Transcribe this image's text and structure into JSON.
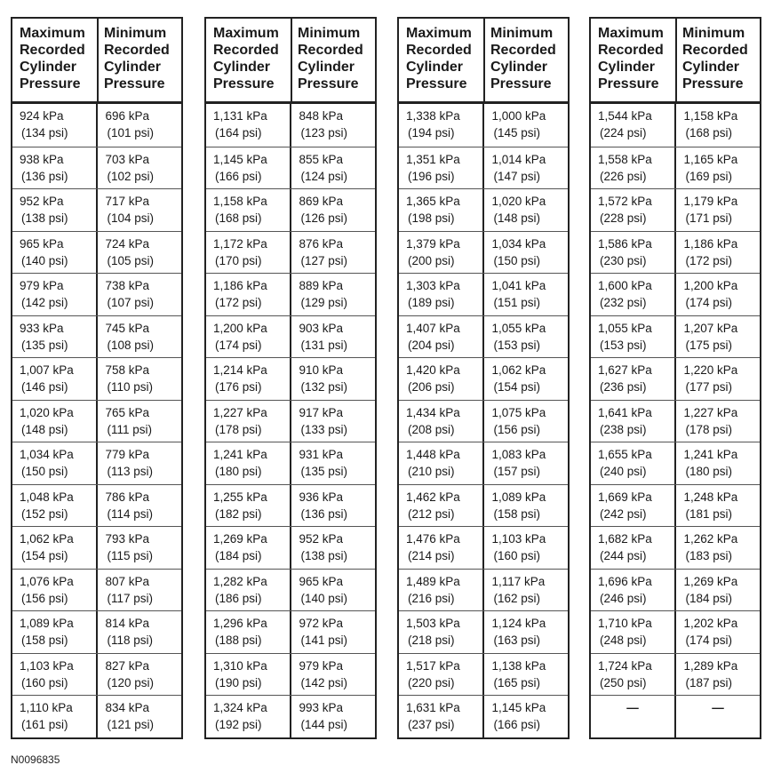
{
  "headers": {
    "max": "Maximum Recorded Cylinder Pressure",
    "min": "Minimum Recorded Cylinder Pressure"
  },
  "tables": [
    {
      "rows": [
        {
          "max_kpa": "924 kPa",
          "max_psi": "(134 psi)",
          "min_kpa": "696 kPa",
          "min_psi": "(101 psi)"
        },
        {
          "max_kpa": "938 kPa",
          "max_psi": "(136 psi)",
          "min_kpa": "703 kPa",
          "min_psi": "(102 psi)"
        },
        {
          "max_kpa": "952 kPa",
          "max_psi": "(138 psi)",
          "min_kpa": "717 kPa",
          "min_psi": "(104 psi)"
        },
        {
          "max_kpa": "965 kPa",
          "max_psi": "(140 psi)",
          "min_kpa": "724 kPa",
          "min_psi": "(105 psi)"
        },
        {
          "max_kpa": "979 kPa",
          "max_psi": "(142 psi)",
          "min_kpa": "738 kPa",
          "min_psi": "(107 psi)"
        },
        {
          "max_kpa": "933 kPa",
          "max_psi": "(135 psi)",
          "min_kpa": "745 kPa",
          "min_psi": "(108 psi)"
        },
        {
          "max_kpa": "1,007 kPa",
          "max_psi": "(146 psi)",
          "min_kpa": "758 kPa",
          "min_psi": "(110 psi)"
        },
        {
          "max_kpa": "1,020 kPa",
          "max_psi": "(148 psi)",
          "min_kpa": "765 kPa",
          "min_psi": "(111 psi)"
        },
        {
          "max_kpa": "1,034 kPa",
          "max_psi": "(150 psi)",
          "min_kpa": "779 kPa",
          "min_psi": "(113 psi)"
        },
        {
          "max_kpa": "1,048 kPa",
          "max_psi": "(152 psi)",
          "min_kpa": "786 kPa",
          "min_psi": "(114 psi)"
        },
        {
          "max_kpa": "1,062 kPa",
          "max_psi": "(154 psi)",
          "min_kpa": "793 kPa",
          "min_psi": "(115 psi)"
        },
        {
          "max_kpa": "1,076 kPa",
          "max_psi": "(156 psi)",
          "min_kpa": "807 kPa",
          "min_psi": "(117 psi)"
        },
        {
          "max_kpa": "1,089 kPa",
          "max_psi": "(158 psi)",
          "min_kpa": "814 kPa",
          "min_psi": "(118 psi)"
        },
        {
          "max_kpa": "1,103 kPa",
          "max_psi": "(160 psi)",
          "min_kpa": "827 kPa",
          "min_psi": "(120 psi)"
        },
        {
          "max_kpa": "1,110 kPa",
          "max_psi": "(161 psi)",
          "min_kpa": "834 kPa",
          "min_psi": "(121 psi)"
        }
      ]
    },
    {
      "rows": [
        {
          "max_kpa": "1,131 kPa",
          "max_psi": "(164 psi)",
          "min_kpa": "848 kPa",
          "min_psi": "(123 psi)"
        },
        {
          "max_kpa": "1,145 kPa",
          "max_psi": "(166 psi)",
          "min_kpa": "855 kPa",
          "min_psi": "(124 psi)"
        },
        {
          "max_kpa": "1,158 kPa",
          "max_psi": "(168 psi)",
          "min_kpa": "869 kPa",
          "min_psi": "(126 psi)"
        },
        {
          "max_kpa": "1,172 kPa",
          "max_psi": "(170 psi)",
          "min_kpa": "876 kPa",
          "min_psi": "(127 psi)"
        },
        {
          "max_kpa": "1,186 kPa",
          "max_psi": "(172 psi)",
          "min_kpa": "889 kPa",
          "min_psi": "(129 psi)"
        },
        {
          "max_kpa": "1,200 kPa",
          "max_psi": "(174 psi)",
          "min_kpa": "903 kPa",
          "min_psi": "(131 psi)"
        },
        {
          "max_kpa": "1,214 kPa",
          "max_psi": "(176 psi)",
          "min_kpa": "910 kPa",
          "min_psi": "(132 psi)"
        },
        {
          "max_kpa": "1,227 kPa",
          "max_psi": "(178 psi)",
          "min_kpa": "917 kPa",
          "min_psi": "(133 psi)"
        },
        {
          "max_kpa": "1,241 kPa",
          "max_psi": "(180 psi)",
          "min_kpa": "931 kPa",
          "min_psi": "(135 psi)"
        },
        {
          "max_kpa": "1,255 kPa",
          "max_psi": "(182 psi)",
          "min_kpa": "936 kPa",
          "min_psi": "(136 psi)"
        },
        {
          "max_kpa": "1,269 kPa",
          "max_psi": "(184 psi)",
          "min_kpa": "952 kPa",
          "min_psi": "(138 psi)"
        },
        {
          "max_kpa": "1,282 kPa",
          "max_psi": "(186 psi)",
          "min_kpa": "965 kPa",
          "min_psi": "(140 psi)"
        },
        {
          "max_kpa": "1,296 kPa",
          "max_psi": "(188 psi)",
          "min_kpa": "972 kPa",
          "min_psi": "(141 psi)"
        },
        {
          "max_kpa": "1,310 kPa",
          "max_psi": "(190 psi)",
          "min_kpa": "979 kPa",
          "min_psi": "(142 psi)"
        },
        {
          "max_kpa": "1,324 kPa",
          "max_psi": "(192 psi)",
          "min_kpa": "993 kPa",
          "min_psi": "(144 psi)"
        }
      ]
    },
    {
      "rows": [
        {
          "max_kpa": "1,338 kPa",
          "max_psi": "(194 psi)",
          "min_kpa": "1,000 kPa",
          "min_psi": "(145 psi)"
        },
        {
          "max_kpa": "1,351 kPa",
          "max_psi": "(196 psi)",
          "min_kpa": "1,014 kPa",
          "min_psi": "(147 psi)"
        },
        {
          "max_kpa": "1,365 kPa",
          "max_psi": "(198 psi)",
          "min_kpa": "1,020 kPa",
          "min_psi": "(148 psi)"
        },
        {
          "max_kpa": "1,379 kPa",
          "max_psi": "(200 psi)",
          "min_kpa": "1,034 kPa",
          "min_psi": "(150 psi)"
        },
        {
          "max_kpa": "1,303 kPa",
          "max_psi": "(189 psi)",
          "min_kpa": "1,041 kPa",
          "min_psi": "(151 psi)"
        },
        {
          "max_kpa": "1,407 kPa",
          "max_psi": "(204 psi)",
          "min_kpa": "1,055 kPa",
          "min_psi": "(153 psi)"
        },
        {
          "max_kpa": "1,420 kPa",
          "max_psi": "(206 psi)",
          "min_kpa": "1,062 kPa",
          "min_psi": "(154 psi)"
        },
        {
          "max_kpa": "1,434 kPa",
          "max_psi": "(208 psi)",
          "min_kpa": "1,075 kPa",
          "min_psi": "(156 psi)"
        },
        {
          "max_kpa": "1,448 kPa",
          "max_psi": "(210 psi)",
          "min_kpa": "1,083 kPa",
          "min_psi": "(157 psi)"
        },
        {
          "max_kpa": "1,462 kPa",
          "max_psi": "(212 psi)",
          "min_kpa": "1,089 kPa",
          "min_psi": "(158 psi)"
        },
        {
          "max_kpa": "1,476 kPa",
          "max_psi": "(214 psi)",
          "min_kpa": "1,103 kPa",
          "min_psi": "(160 psi)"
        },
        {
          "max_kpa": "1,489 kPa",
          "max_psi": "(216 psi)",
          "min_kpa": "1,117 kPa",
          "min_psi": "(162 psi)"
        },
        {
          "max_kpa": "1,503 kPa",
          "max_psi": "(218 psi)",
          "min_kpa": "1,124 kPa",
          "min_psi": "(163 psi)"
        },
        {
          "max_kpa": "1,517 kPa",
          "max_psi": "(220 psi)",
          "min_kpa": "1,138 kPa",
          "min_psi": "(165 psi)"
        },
        {
          "max_kpa": "1,631 kPa",
          "max_psi": "(237 psi)",
          "min_kpa": "1,145 kPa",
          "min_psi": "(166 psi)"
        }
      ]
    },
    {
      "rows": [
        {
          "max_kpa": "1,544 kPa",
          "max_psi": "(224 psi)",
          "min_kpa": "1,158 kPa",
          "min_psi": "(168 psi)"
        },
        {
          "max_kpa": "1,558 kPa",
          "max_psi": "(226 psi)",
          "min_kpa": "1,165 kPa",
          "min_psi": "(169 psi)"
        },
        {
          "max_kpa": "1,572 kPa",
          "max_psi": "(228 psi)",
          "min_kpa": "1,179 kPa",
          "min_psi": "(171 psi)"
        },
        {
          "max_kpa": "1,586 kPa",
          "max_psi": "(230 psi)",
          "min_kpa": "1,186 kPa",
          "min_psi": "(172 psi)"
        },
        {
          "max_kpa": "1,600 kPa",
          "max_psi": "(232 psi)",
          "min_kpa": "1,200 kPa",
          "min_psi": "(174 psi)"
        },
        {
          "max_kpa": "1,055 kPa",
          "max_psi": "(153 psi)",
          "min_kpa": "1,207 kPa",
          "min_psi": "(175 psi)"
        },
        {
          "max_kpa": "1,627 kPa",
          "max_psi": "(236 psi)",
          "min_kpa": "1,220 kPa",
          "min_psi": "(177 psi)"
        },
        {
          "max_kpa": "1,641 kPa",
          "max_psi": "(238 psi)",
          "min_kpa": "1,227 kPa",
          "min_psi": "(178 psi)"
        },
        {
          "max_kpa": "1,655 kPa",
          "max_psi": "(240 psi)",
          "min_kpa": "1,241 kPa",
          "min_psi": "(180 psi)"
        },
        {
          "max_kpa": "1,669 kPa",
          "max_psi": "(242 psi)",
          "min_kpa": "1,248 kPa",
          "min_psi": "(181 psi)"
        },
        {
          "max_kpa": "1,682 kPa",
          "max_psi": "(244 psi)",
          "min_kpa": "1,262 kPa",
          "min_psi": "(183 psi)"
        },
        {
          "max_kpa": "1,696 kPa",
          "max_psi": "(246 psi)",
          "min_kpa": "1,269 kPa",
          "min_psi": "(184 psi)"
        },
        {
          "max_kpa": "1,710 kPa",
          "max_psi": "(248 psi)",
          "min_kpa": "1,202 kPa",
          "min_psi": "(174 psi)"
        },
        {
          "max_kpa": "1,724 kPa",
          "max_psi": "(250 psi)",
          "min_kpa": "1,289 kPa",
          "min_psi": "(187 psi)"
        },
        {
          "max_kpa": "—",
          "max_psi": "",
          "min_kpa": "—",
          "min_psi": ""
        }
      ]
    }
  ],
  "footer": {
    "figure_id": "N0096835"
  }
}
